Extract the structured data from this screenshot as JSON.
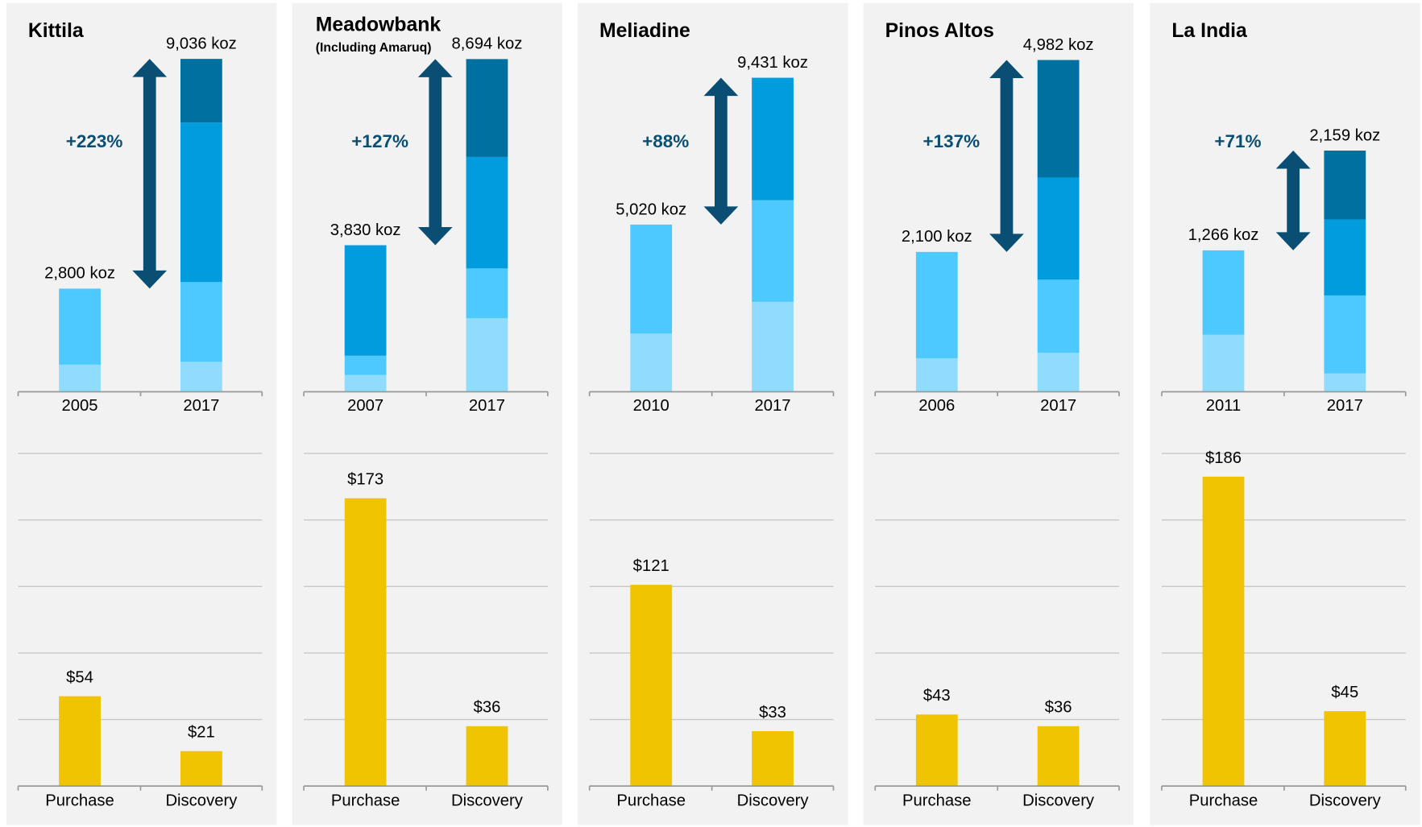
{
  "chart_data": [
    {
      "type": "stacked_bar",
      "title": "Kittila",
      "annotation": "+223%",
      "categories": [
        "2005",
        "2017"
      ],
      "series": [
        {
          "color": "#8fdcff",
          "values": [
            735,
            812
          ]
        },
        {
          "color": "#4dc9ff",
          "values": [
            2065,
            2165
          ]
        },
        {
          "color": "#009cde",
          "values": [
            null,
            4330
          ]
        },
        {
          "color": "#0070a0",
          "values": [
            null,
            1729
          ]
        }
      ],
      "totals": [
        2800,
        9036
      ],
      "total_labels": [
        "2,800 koz",
        "9,036 koz"
      ],
      "ylim": [
        0,
        9400
      ]
    },
    {
      "type": "bar",
      "categories": [
        "Purchase",
        "Discovery"
      ],
      "values": [
        54,
        21
      ],
      "value_labels": [
        "$54",
        "$21"
      ],
      "color": "#f0c400",
      "ylim": [
        0,
        200
      ],
      "yticks": [
        0,
        40,
        80,
        120,
        160,
        200
      ],
      "grid": true
    },
    {
      "type": "stacked_bar",
      "title": "Meadowbank",
      "subtitle": "(Including Amaruq)",
      "annotation": "+127%",
      "categories": [
        "2007",
        "2017"
      ],
      "series": [
        {
          "color": "#8fdcff",
          "values": [
            438,
            1920
          ]
        },
        {
          "color": "#4dc9ff",
          "values": [
            503,
            1303
          ]
        },
        {
          "color": "#009cde",
          "values": [
            2889,
            2914
          ]
        },
        {
          "color": "#0070a0",
          "values": [
            null,
            2558
          ]
        }
      ],
      "totals": [
        3830,
        8694
      ],
      "total_labels": [
        "3,830 koz",
        "8,694 koz"
      ],
      "ylim": [
        0,
        9050
      ]
    },
    {
      "type": "bar",
      "categories": [
        "Purchase",
        "Discovery"
      ],
      "values": [
        173,
        36
      ],
      "value_labels": [
        "$173",
        "$36"
      ],
      "color": "#f0c400",
      "ylim": [
        0,
        200
      ],
      "yticks": [
        0,
        40,
        80,
        120,
        160,
        200
      ],
      "grid": true
    },
    {
      "type": "stacked_bar",
      "title": "Meliadine",
      "annotation": "+88%",
      "categories": [
        "2010",
        "2017"
      ],
      "series": [
        {
          "color": "#8fdcff",
          "values": [
            1746,
            2699
          ]
        },
        {
          "color": "#4dc9ff",
          "values": [
            3274,
            3053
          ]
        },
        {
          "color": "#009cde",
          "values": [
            null,
            3679
          ]
        }
      ],
      "totals": [
        5020,
        9431
      ],
      "total_labels": [
        "5,020 koz",
        "9,431 koz"
      ],
      "ylim": [
        0,
        10400
      ]
    },
    {
      "type": "bar",
      "categories": [
        "Purchase",
        "Discovery"
      ],
      "values": [
        121,
        33
      ],
      "value_labels": [
        "$121",
        "$33"
      ],
      "color": "#f0c400",
      "ylim": [
        0,
        200
      ],
      "yticks": [
        0,
        40,
        80,
        120,
        160,
        200
      ],
      "grid": true
    },
    {
      "type": "stacked_bar",
      "title": "Pinos Altos",
      "annotation": "+137%",
      "categories": [
        "2006",
        "2017"
      ],
      "series": [
        {
          "color": "#8fdcff",
          "values": [
            503,
            584
          ]
        },
        {
          "color": "#4dc9ff",
          "values": [
            1597,
            1099
          ]
        },
        {
          "color": "#009cde",
          "values": [
            null,
            1534
          ]
        },
        {
          "color": "#0070a0",
          "values": [
            null,
            1765
          ]
        }
      ],
      "totals": [
        2100,
        4982
      ],
      "total_labels": [
        "2,100 koz",
        "4,982 koz"
      ],
      "ylim": [
        0,
        5200
      ]
    },
    {
      "type": "bar",
      "categories": [
        "Purchase",
        "Discovery"
      ],
      "values": [
        43,
        36
      ],
      "value_labels": [
        "$43",
        "$36"
      ],
      "color": "#f0c400",
      "ylim": [
        0,
        200
      ],
      "yticks": [
        0,
        40,
        80,
        120,
        160,
        200
      ],
      "grid": true
    },
    {
      "type": "stacked_bar",
      "title": "La India",
      "annotation": "+71%",
      "categories": [
        "2011",
        "2017"
      ],
      "series": [
        {
          "color": "#8fdcff",
          "values": [
            510,
            164
          ]
        },
        {
          "color": "#4dc9ff",
          "values": [
            756,
            698
          ]
        },
        {
          "color": "#009cde",
          "values": [
            null,
            681
          ]
        },
        {
          "color": "#0070a0",
          "values": [
            null,
            616
          ]
        }
      ],
      "totals": [
        1266,
        2159
      ],
      "total_labels": [
        "1,266 koz",
        "2,159 koz"
      ],
      "ylim": [
        0,
        3100
      ]
    },
    {
      "type": "bar",
      "categories": [
        "Purchase",
        "Discovery"
      ],
      "values": [
        186,
        45
      ],
      "value_labels": [
        "$186",
        "$45"
      ],
      "color": "#f0c400",
      "ylim": [
        0,
        200
      ],
      "yticks": [
        0,
        40,
        80,
        120,
        160,
        200
      ],
      "grid": true
    }
  ]
}
